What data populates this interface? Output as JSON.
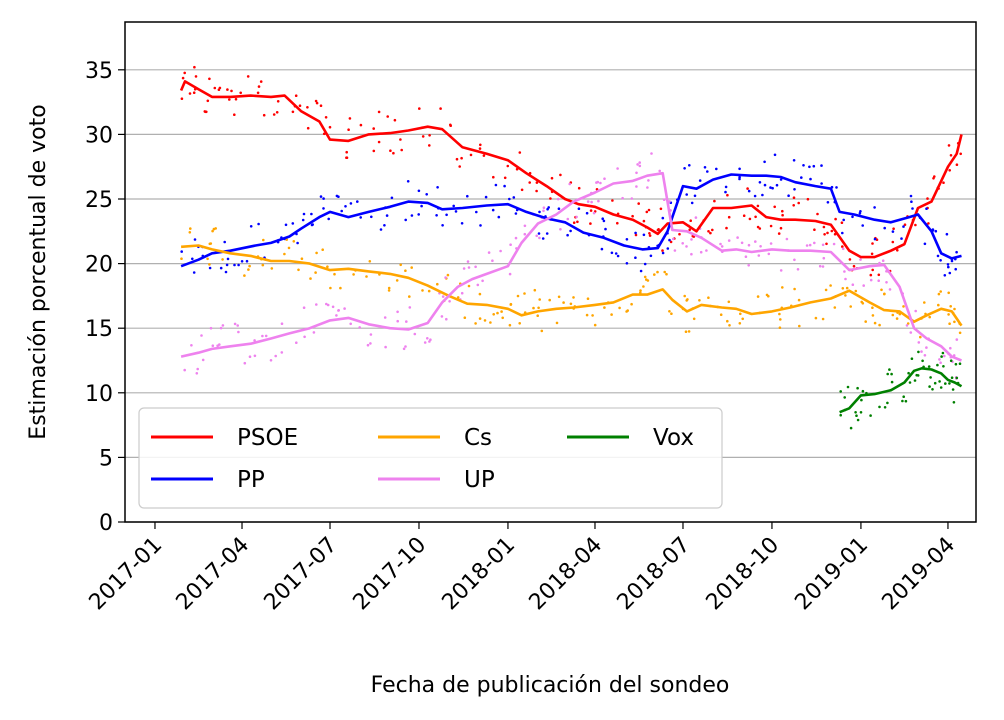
{
  "chart_data": {
    "type": "line",
    "title": "",
    "xlabel": "Fecha de publicación del sondeo",
    "ylabel": "Estimación porcentual de voto",
    "xlim": [
      "2016-12-01",
      "2019-04-30"
    ],
    "ylim": [
      0,
      38.7
    ],
    "yticks": [
      0,
      5,
      10,
      15,
      20,
      25,
      30,
      35
    ],
    "xticks": [
      "2017-01",
      "2017-04",
      "2017-07",
      "2017-10",
      "2018-01",
      "2018-04",
      "2018-07",
      "2018-10",
      "2019-01",
      "2019-04"
    ],
    "grid": "horizontal",
    "legend": {
      "placement": "lower-left",
      "columns": 3
    },
    "series": [
      {
        "name": "PSOE",
        "color": "#ff0000",
        "x": [
          "2017-01-28",
          "2017-02-01",
          "2017-02-15",
          "2017-03-01",
          "2017-03-20",
          "2017-04-10",
          "2017-05-01",
          "2017-05-15",
          "2017-06-01",
          "2017-06-20",
          "2017-07-01",
          "2017-07-20",
          "2017-08-10",
          "2017-09-01",
          "2017-09-20",
          "2017-10-10",
          "2017-10-25",
          "2017-11-15",
          "2017-12-10",
          "2018-01-01",
          "2018-01-20",
          "2018-02-10",
          "2018-03-01",
          "2018-03-15",
          "2018-04-01",
          "2018-04-20",
          "2018-05-10",
          "2018-05-25",
          "2018-06-05",
          "2018-06-15",
          "2018-07-01",
          "2018-07-15",
          "2018-08-01",
          "2018-08-20",
          "2018-09-10",
          "2018-09-25",
          "2018-10-10",
          "2018-10-25",
          "2018-11-15",
          "2018-12-01",
          "2018-12-20",
          "2019-01-01",
          "2019-01-15",
          "2019-02-01",
          "2019-02-15",
          "2019-03-01",
          "2019-03-15",
          "2019-04-01",
          "2019-04-10",
          "2019-04-15"
        ],
        "y": [
          33.4,
          34.1,
          33.5,
          32.9,
          32.9,
          33.0,
          32.9,
          33.0,
          31.8,
          31.0,
          29.6,
          29.5,
          30.0,
          30.1,
          30.3,
          30.6,
          30.4,
          29.0,
          28.5,
          28.0,
          27.0,
          26.0,
          25.0,
          24.6,
          24.4,
          23.8,
          23.4,
          22.8,
          22.3,
          23.1,
          23.2,
          22.5,
          24.3,
          24.3,
          24.5,
          23.6,
          23.4,
          23.4,
          23.3,
          23.0,
          21.0,
          20.5,
          20.5,
          21.0,
          21.5,
          24.3,
          24.8,
          27.5,
          28.5,
          30.0
        ]
      },
      {
        "name": "PP",
        "color": "#0000ff",
        "x": [
          "2017-01-28",
          "2017-02-15",
          "2017-03-01",
          "2017-03-20",
          "2017-04-15",
          "2017-05-01",
          "2017-05-20",
          "2017-06-01",
          "2017-06-20",
          "2017-07-01",
          "2017-07-20",
          "2017-08-10",
          "2017-09-01",
          "2017-09-20",
          "2017-10-10",
          "2017-10-25",
          "2017-11-15",
          "2017-12-10",
          "2018-01-01",
          "2018-01-20",
          "2018-02-10",
          "2018-03-01",
          "2018-03-20",
          "2018-04-10",
          "2018-05-01",
          "2018-05-20",
          "2018-06-05",
          "2018-06-15",
          "2018-07-01",
          "2018-07-15",
          "2018-08-01",
          "2018-08-20",
          "2018-09-10",
          "2018-09-25",
          "2018-10-10",
          "2018-10-25",
          "2018-11-15",
          "2018-12-01",
          "2018-12-10",
          "2018-12-25",
          "2019-01-15",
          "2019-02-01",
          "2019-02-20",
          "2019-03-01",
          "2019-03-15",
          "2019-03-25",
          "2019-04-05",
          "2019-04-15"
        ],
        "y": [
          19.8,
          20.3,
          20.8,
          21.0,
          21.4,
          21.6,
          22.1,
          22.7,
          23.6,
          24.0,
          23.6,
          24.0,
          24.4,
          24.8,
          24.7,
          24.2,
          24.3,
          24.5,
          24.6,
          24.0,
          23.5,
          23.2,
          22.4,
          22.0,
          21.4,
          21.1,
          21.2,
          22.5,
          26.0,
          25.8,
          26.5,
          26.9,
          26.8,
          26.8,
          26.7,
          26.3,
          26.0,
          25.8,
          24.0,
          23.8,
          23.4,
          23.2,
          23.6,
          23.8,
          22.5,
          20.8,
          20.4,
          20.6
        ]
      },
      {
        "name": "Cs",
        "color": "#ffa500",
        "x": [
          "2017-01-28",
          "2017-02-15",
          "2017-03-01",
          "2017-03-20",
          "2017-04-10",
          "2017-05-01",
          "2017-05-20",
          "2017-06-10",
          "2017-07-01",
          "2017-07-20",
          "2017-08-10",
          "2017-09-01",
          "2017-09-20",
          "2017-10-10",
          "2017-11-01",
          "2017-11-20",
          "2017-12-10",
          "2018-01-01",
          "2018-01-15",
          "2018-02-01",
          "2018-02-20",
          "2018-03-10",
          "2018-04-01",
          "2018-04-20",
          "2018-05-10",
          "2018-05-25",
          "2018-06-10",
          "2018-06-20",
          "2018-07-05",
          "2018-07-20",
          "2018-08-10",
          "2018-08-25",
          "2018-09-10",
          "2018-10-01",
          "2018-10-20",
          "2018-11-10",
          "2018-12-01",
          "2018-12-20",
          "2019-01-10",
          "2019-01-25",
          "2019-02-10",
          "2019-02-25",
          "2019-03-10",
          "2019-03-25",
          "2019-04-05",
          "2019-04-15"
        ],
        "y": [
          21.3,
          21.4,
          21.1,
          20.8,
          20.6,
          20.2,
          20.2,
          20.0,
          19.5,
          19.6,
          19.4,
          19.2,
          18.9,
          18.3,
          17.5,
          16.9,
          16.8,
          16.5,
          16.0,
          16.3,
          16.5,
          16.6,
          16.8,
          17.0,
          17.6,
          17.6,
          18.0,
          17.2,
          16.3,
          16.8,
          16.6,
          16.5,
          16.1,
          16.3,
          16.6,
          17.0,
          17.3,
          17.9,
          17.0,
          16.4,
          16.3,
          15.5,
          16.0,
          16.5,
          16.3,
          15.2
        ]
      },
      {
        "name": "UP",
        "color": "#ee82ee",
        "x": [
          "2017-01-28",
          "2017-02-15",
          "2017-03-01",
          "2017-03-20",
          "2017-04-10",
          "2017-05-01",
          "2017-05-20",
          "2017-06-10",
          "2017-07-01",
          "2017-07-20",
          "2017-08-10",
          "2017-09-01",
          "2017-09-20",
          "2017-10-10",
          "2017-10-25",
          "2017-11-10",
          "2017-11-25",
          "2017-12-10",
          "2018-01-01",
          "2018-01-15",
          "2018-02-01",
          "2018-02-20",
          "2018-03-10",
          "2018-04-01",
          "2018-04-20",
          "2018-05-10",
          "2018-05-25",
          "2018-06-10",
          "2018-06-20",
          "2018-07-05",
          "2018-07-20",
          "2018-08-10",
          "2018-08-25",
          "2018-09-10",
          "2018-10-01",
          "2018-10-20",
          "2018-11-10",
          "2018-12-01",
          "2018-12-20",
          "2019-01-10",
          "2019-01-25",
          "2019-02-10",
          "2019-02-25",
          "2019-03-10",
          "2019-03-25",
          "2019-04-05",
          "2019-04-15"
        ],
        "y": [
          12.8,
          13.1,
          13.4,
          13.6,
          13.8,
          14.2,
          14.6,
          15.0,
          15.6,
          15.8,
          15.3,
          15.0,
          14.9,
          15.4,
          17.0,
          18.2,
          18.8,
          19.2,
          19.8,
          21.6,
          23.1,
          23.8,
          24.8,
          25.5,
          26.2,
          26.4,
          26.8,
          27.0,
          22.6,
          22.5,
          22.0,
          21.0,
          21.1,
          20.9,
          21.1,
          21.0,
          21.0,
          20.9,
          19.5,
          19.8,
          19.9,
          18.2,
          15.0,
          14.2,
          13.6,
          12.8,
          12.5
        ]
      },
      {
        "name": "Vox",
        "color": "#008000",
        "x": [
          "2018-12-10",
          "2018-12-20",
          "2019-01-01",
          "2019-01-15",
          "2019-02-01",
          "2019-02-15",
          "2019-02-25",
          "2019-03-05",
          "2019-03-15",
          "2019-03-25",
          "2019-04-01",
          "2019-04-08",
          "2019-04-15"
        ],
        "y": [
          8.5,
          8.8,
          9.8,
          9.9,
          10.2,
          10.8,
          11.7,
          11.9,
          11.8,
          11.5,
          11.0,
          10.8,
          10.5
        ]
      }
    ]
  }
}
